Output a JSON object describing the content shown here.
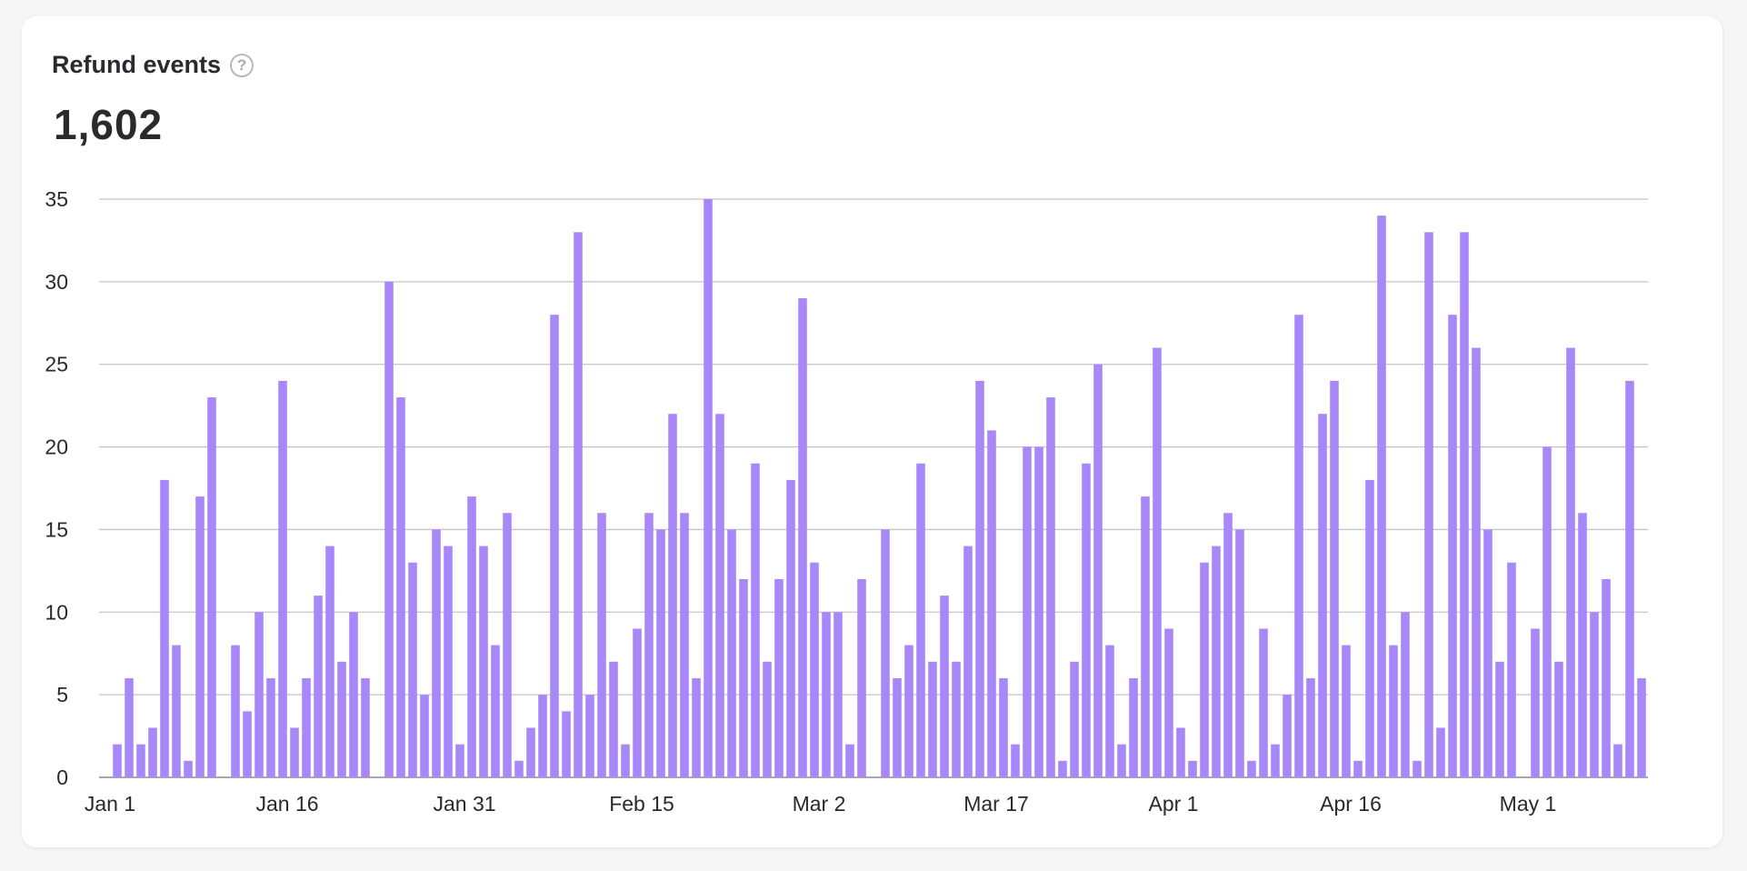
{
  "card": {
    "title": "Refund events",
    "help_icon": "question-circle-icon",
    "total": "1,602"
  },
  "chart_data": {
    "type": "bar",
    "title": "Refund events",
    "xlabel": "",
    "ylabel": "",
    "ylim": [
      0,
      35
    ],
    "yticks": [
      "0",
      "5",
      "10",
      "15",
      "20",
      "25",
      "30",
      "35"
    ],
    "xticks": [
      "Jan 1",
      "Jan 16",
      "Jan 31",
      "Feb 15",
      "Mar 2",
      "Mar 17",
      "Apr 1",
      "Apr 16",
      "May 1"
    ],
    "grid": true,
    "bar_color": "#a888f8",
    "x": [
      "Jan 1",
      "Jan 2",
      "Jan 3",
      "Jan 4",
      "Jan 5",
      "Jan 6",
      "Jan 7",
      "Jan 8",
      "Jan 9",
      "Jan 10",
      "Jan 11",
      "Jan 12",
      "Jan 13",
      "Jan 14",
      "Jan 15",
      "Jan 16",
      "Jan 17",
      "Jan 18",
      "Jan 19",
      "Jan 20",
      "Jan 21",
      "Jan 22",
      "Jan 23",
      "Jan 24",
      "Jan 25",
      "Jan 26",
      "Jan 27",
      "Jan 28",
      "Jan 29",
      "Jan 30",
      "Jan 31",
      "Feb 1",
      "Feb 2",
      "Feb 3",
      "Feb 4",
      "Feb 5",
      "Feb 6",
      "Feb 7",
      "Feb 8",
      "Feb 9",
      "Feb 10",
      "Feb 11",
      "Feb 12",
      "Feb 13",
      "Feb 14",
      "Feb 15",
      "Feb 16",
      "Feb 17",
      "Feb 18",
      "Feb 19",
      "Feb 20",
      "Feb 21",
      "Feb 22",
      "Feb 23",
      "Feb 24",
      "Feb 25",
      "Feb 26",
      "Feb 27",
      "Feb 28",
      "Mar 1",
      "Mar 2",
      "Mar 3",
      "Mar 4",
      "Mar 5",
      "Mar 6",
      "Mar 7",
      "Mar 8",
      "Mar 9",
      "Mar 10",
      "Mar 11",
      "Mar 12",
      "Mar 13",
      "Mar 14",
      "Mar 15",
      "Mar 16",
      "Mar 17",
      "Mar 18",
      "Mar 19",
      "Mar 20",
      "Mar 21",
      "Mar 22",
      "Mar 23",
      "Mar 24",
      "Mar 25",
      "Mar 26",
      "Mar 27",
      "Mar 28",
      "Mar 29",
      "Mar 30",
      "Mar 31",
      "Apr 1",
      "Apr 2",
      "Apr 3",
      "Apr 4",
      "Apr 5",
      "Apr 6",
      "Apr 7",
      "Apr 8",
      "Apr 9",
      "Apr 10",
      "Apr 11",
      "Apr 12",
      "Apr 13",
      "Apr 14",
      "Apr 15",
      "Apr 16",
      "Apr 17",
      "Apr 18",
      "Apr 19",
      "Apr 20",
      "Apr 21",
      "Apr 22",
      "Apr 23",
      "Apr 24",
      "Apr 25",
      "Apr 26",
      "Apr 27",
      "Apr 28",
      "Apr 29",
      "Apr 30",
      "May 1",
      "May 2",
      "May 3",
      "May 4",
      "May 5",
      "May 6",
      "May 7",
      "May 8",
      "May 9",
      "May 10"
    ],
    "values": [
      2,
      6,
      2,
      3,
      18,
      8,
      1,
      17,
      23,
      0,
      8,
      4,
      10,
      6,
      24,
      3,
      6,
      11,
      14,
      7,
      10,
      6,
      0,
      30,
      23,
      13,
      5,
      15,
      14,
      2,
      17,
      14,
      8,
      16,
      1,
      3,
      5,
      28,
      4,
      33,
      5,
      16,
      7,
      2,
      9,
      16,
      15,
      22,
      16,
      6,
      35,
      22,
      15,
      12,
      19,
      7,
      12,
      18,
      29,
      13,
      10,
      10,
      2,
      12,
      0,
      15,
      6,
      8,
      19,
      7,
      11,
      7,
      14,
      24,
      21,
      6,
      2,
      20,
      20,
      23,
      1,
      7,
      19,
      25,
      8,
      2,
      6,
      17,
      26,
      9,
      3,
      1,
      13,
      14,
      16,
      15,
      1,
      9,
      2,
      5,
      28,
      6,
      22,
      24,
      8,
      1,
      18,
      34,
      8,
      10,
      1,
      33,
      3,
      28,
      33,
      26,
      15,
      7,
      13,
      0,
      9,
      20,
      7,
      26,
      16,
      10,
      12,
      2,
      24,
      6
    ]
  }
}
